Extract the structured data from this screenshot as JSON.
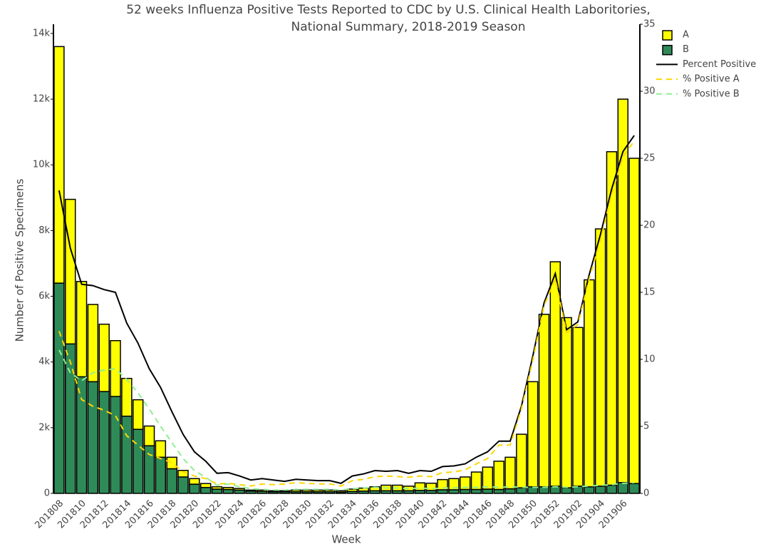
{
  "chart_data": {
    "type": "bar",
    "title": [
      "52 weeks Influenza Positive Tests Reported to CDC by U.S. Clinical Health Laboritories,",
      "National Summary, 2018-2019 Season"
    ],
    "x_label": "Week",
    "y_label": "Number of Positive Specimens",
    "categories": [
      "201808",
      null,
      "201810",
      null,
      "201812",
      null,
      "201814",
      null,
      "201816",
      null,
      "201818",
      null,
      "201820",
      null,
      "201822",
      null,
      "201824",
      null,
      "201826",
      null,
      "201828",
      null,
      "201830",
      null,
      "201832",
      null,
      "201834",
      null,
      "201836",
      null,
      "201838",
      null,
      "201840",
      null,
      "201842",
      null,
      "201844",
      null,
      "201846",
      null,
      "201848",
      null,
      "201850",
      null,
      "201852",
      null,
      "201902",
      null,
      "201904",
      null,
      "201906",
      null
    ],
    "ylim": [
      0,
      14280
    ],
    "yticks": [
      0,
      {
        "value": 2000,
        "label": "2k"
      },
      {
        "value": 4000,
        "label": "4k"
      },
      {
        "value": 6000,
        "label": "6k"
      },
      {
        "value": 8000,
        "label": "8k"
      },
      {
        "value": 10000,
        "label": "10k"
      },
      {
        "value": 12000,
        "label": "12k"
      },
      {
        "value": 14000,
        "label": "14k"
      }
    ],
    "y2lim": [
      0,
      35
    ],
    "y2ticks": [
      0,
      5,
      10,
      15,
      20,
      25,
      30,
      35
    ],
    "series": [
      {
        "name": "A",
        "type": "bar",
        "color": "#ffff00",
        "values": [
          7200,
          4400,
          2900,
          2350,
          2050,
          1700,
          1150,
          900,
          600,
          500,
          350,
          200,
          170,
          120,
          70,
          60,
          50,
          30,
          40,
          30,
          30,
          50,
          50,
          50,
          50,
          40,
          70,
          90,
          120,
          170,
          170,
          140,
          230,
          220,
          310,
          340,
          380,
          530,
          670,
          860,
          960,
          1630,
          3200,
          5250,
          6830,
          5180,
          4830,
          6300,
          7830,
          10150,
          11670,
          9900
        ]
      },
      {
        "name": "B",
        "type": "bar",
        "color": "#2e8b57",
        "values": [
          6400,
          4550,
          3550,
          3400,
          3100,
          2950,
          2350,
          1950,
          1450,
          1100,
          750,
          500,
          280,
          180,
          130,
          120,
          100,
          70,
          60,
          50,
          50,
          50,
          50,
          50,
          50,
          40,
          60,
          70,
          80,
          80,
          80,
          80,
          90,
          90,
          110,
          110,
          120,
          120,
          130,
          120,
          140,
          170,
          200,
          200,
          220,
          170,
          220,
          200,
          220,
          250,
          330,
          300
        ]
      },
      {
        "name": "Percent Positive",
        "type": "line",
        "axis": "y2",
        "color": "#000000",
        "values": [
          22.6,
          18.3,
          15.6,
          15.5,
          15.2,
          15.0,
          12.7,
          11.2,
          9.3,
          7.9,
          6.1,
          4.4,
          3.1,
          2.4,
          1.5,
          1.55,
          1.3,
          1.0,
          1.1,
          1.0,
          0.9,
          1.05,
          1.0,
          0.95,
          0.95,
          0.75,
          1.3,
          1.45,
          1.7,
          1.65,
          1.7,
          1.5,
          1.7,
          1.65,
          2.0,
          2.05,
          2.2,
          2.7,
          3.1,
          3.9,
          3.9,
          6.5,
          10.2,
          14.2,
          16.4,
          12.2,
          12.8,
          16.3,
          19.3,
          22.7,
          25.5,
          26.7
        ]
      },
      {
        "name": "% Positive A",
        "type": "line",
        "axis": "y2",
        "dash": true,
        "color": "#ffd700",
        "values": [
          12.1,
          9.8,
          7.0,
          6.5,
          6.2,
          5.8,
          4.3,
          3.6,
          2.9,
          2.6,
          2.3,
          1.6,
          1.3,
          1.1,
          0.7,
          0.75,
          0.65,
          0.55,
          0.7,
          0.65,
          0.7,
          0.8,
          0.75,
          0.7,
          0.7,
          0.55,
          0.95,
          1.05,
          1.25,
          1.3,
          1.25,
          1.2,
          1.3,
          1.25,
          1.55,
          1.6,
          1.75,
          2.2,
          2.6,
          3.6,
          3.6,
          6.3,
          9.9,
          14.0,
          16.0,
          12.0,
          12.6,
          16.0,
          18.9,
          22.3,
          25.1,
          26.3
        ]
      },
      {
        "name": "% Positive B",
        "type": "line",
        "axis": "y2",
        "dash": true,
        "color": "#90ee90",
        "values": [
          10.7,
          9.0,
          8.4,
          9.0,
          9.2,
          9.3,
          8.5,
          7.5,
          6.3,
          5.0,
          3.8,
          2.6,
          1.7,
          1.2,
          0.6,
          0.7,
          0.5,
          0.35,
          0.3,
          0.25,
          0.25,
          0.3,
          0.3,
          0.3,
          0.3,
          0.25,
          0.35,
          0.4,
          0.45,
          0.4,
          0.4,
          0.35,
          0.4,
          0.35,
          0.4,
          0.4,
          0.45,
          0.45,
          0.5,
          0.45,
          0.5,
          0.45,
          0.45,
          0.45,
          0.5,
          0.45,
          0.5,
          0.55,
          0.6,
          0.65,
          0.75,
          0.8
        ]
      }
    ]
  }
}
